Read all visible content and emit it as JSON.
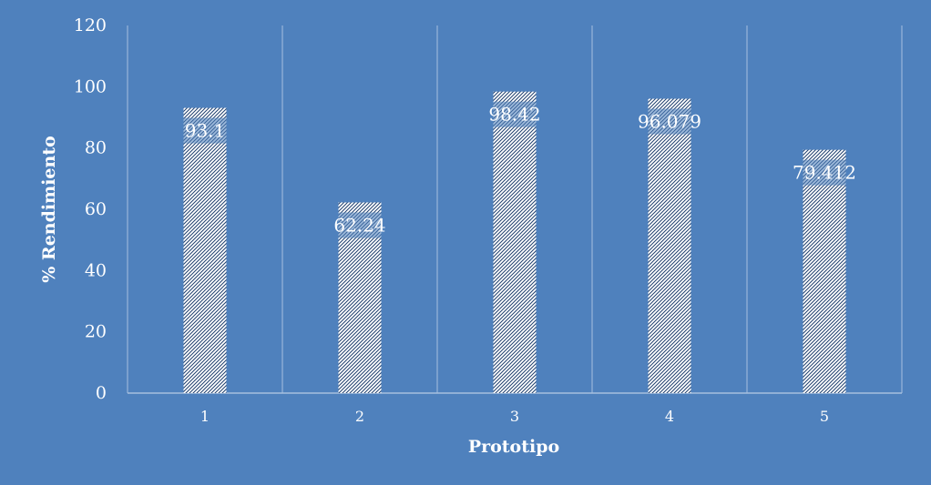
{
  "chart_data": {
    "type": "bar",
    "title": "",
    "xlabel": "Prototipo",
    "ylabel": "% Rendimiento",
    "categories": [
      "1",
      "2",
      "3",
      "4",
      "5"
    ],
    "values": [
      93.1,
      62.24,
      98.42,
      96.079,
      79.412
    ],
    "data_labels": [
      "93.1",
      "62.24",
      "98.42",
      "96.079",
      "79.412"
    ],
    "ylim": [
      0,
      120
    ],
    "yticks": [
      "0",
      "20",
      "40",
      "60",
      "80",
      "100",
      "120"
    ],
    "grid": "vertical",
    "legend": "none",
    "bar_pattern": "diagonal-hatch",
    "colors": {
      "background": "#4f81bd",
      "bar_fill": "#ffffff",
      "hatch": "#1f3f6e",
      "gridline": "#a7c0df",
      "text": "#ffffff"
    }
  }
}
